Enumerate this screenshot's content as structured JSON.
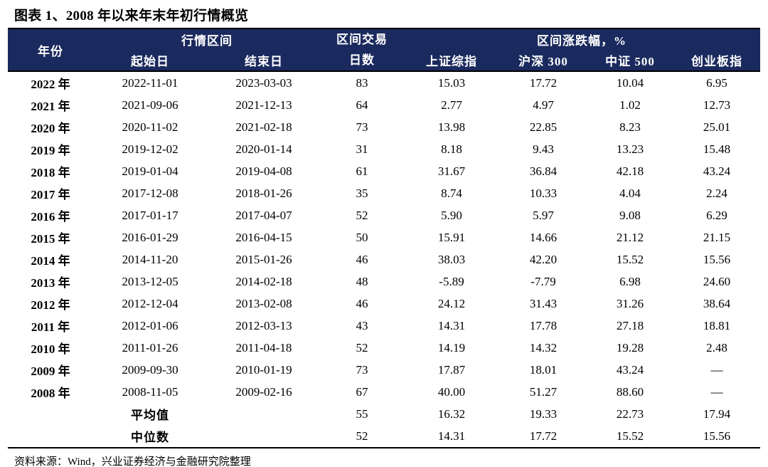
{
  "title": "图表 1、2008 年以来年末年初行情概览",
  "source": "资料来源：Wind，兴业证券经济与金融研究院整理",
  "colors": {
    "header_bg": "#1b2a5e",
    "header_text": "#ffffff",
    "body_text": "#000000",
    "rule": "#000000"
  },
  "table": {
    "header": {
      "year": "年份",
      "period_group": "行情区间",
      "start_date": "起始日",
      "end_date": "结束日",
      "trading_days_line1": "区间交易",
      "trading_days_line2": "日数",
      "change_group": "区间涨跌幅，%",
      "sse": "上证综指",
      "csi300": "沪深 300",
      "csi500": "中证 500",
      "chinext": "创业板指"
    },
    "rows": [
      {
        "year": "2022 年",
        "start": "2022-11-01",
        "end": "2023-03-03",
        "days": "83",
        "sse": "15.03",
        "csi300": "17.72",
        "csi500": "10.04",
        "chinext": "6.95"
      },
      {
        "year": "2021 年",
        "start": "2021-09-06",
        "end": "2021-12-13",
        "days": "64",
        "sse": "2.77",
        "csi300": "4.97",
        "csi500": "1.02",
        "chinext": "12.73"
      },
      {
        "year": "2020 年",
        "start": "2020-11-02",
        "end": "2021-02-18",
        "days": "73",
        "sse": "13.98",
        "csi300": "22.85",
        "csi500": "8.23",
        "chinext": "25.01"
      },
      {
        "year": "2019 年",
        "start": "2019-12-02",
        "end": "2020-01-14",
        "days": "31",
        "sse": "8.18",
        "csi300": "9.43",
        "csi500": "13.23",
        "chinext": "15.48"
      },
      {
        "year": "2018 年",
        "start": "2019-01-04",
        "end": "2019-04-08",
        "days": "61",
        "sse": "31.67",
        "csi300": "36.84",
        "csi500": "42.18",
        "chinext": "43.24"
      },
      {
        "year": "2017 年",
        "start": "2017-12-08",
        "end": "2018-01-26",
        "days": "35",
        "sse": "8.74",
        "csi300": "10.33",
        "csi500": "4.04",
        "chinext": "2.24"
      },
      {
        "year": "2016 年",
        "start": "2017-01-17",
        "end": "2017-04-07",
        "days": "52",
        "sse": "5.90",
        "csi300": "5.97",
        "csi500": "9.08",
        "chinext": "6.29"
      },
      {
        "year": "2015 年",
        "start": "2016-01-29",
        "end": "2016-04-15",
        "days": "50",
        "sse": "15.91",
        "csi300": "14.66",
        "csi500": "21.12",
        "chinext": "21.15"
      },
      {
        "year": "2014 年",
        "start": "2014-11-20",
        "end": "2015-01-26",
        "days": "46",
        "sse": "38.03",
        "csi300": "42.20",
        "csi500": "15.52",
        "chinext": "15.56"
      },
      {
        "year": "2013 年",
        "start": "2013-12-05",
        "end": "2014-02-18",
        "days": "48",
        "sse": "-5.89",
        "csi300": "-7.79",
        "csi500": "6.98",
        "chinext": "24.60"
      },
      {
        "year": "2012 年",
        "start": "2012-12-04",
        "end": "2013-02-08",
        "days": "46",
        "sse": "24.12",
        "csi300": "31.43",
        "csi500": "31.26",
        "chinext": "38.64"
      },
      {
        "year": "2011 年",
        "start": "2012-01-06",
        "end": "2012-03-13",
        "days": "43",
        "sse": "14.31",
        "csi300": "17.78",
        "csi500": "27.18",
        "chinext": "18.81"
      },
      {
        "year": "2010 年",
        "start": "2011-01-26",
        "end": "2011-04-18",
        "days": "52",
        "sse": "14.19",
        "csi300": "14.32",
        "csi500": "19.28",
        "chinext": "2.48"
      },
      {
        "year": "2009 年",
        "start": "2009-09-30",
        "end": "2010-01-19",
        "days": "73",
        "sse": "17.87",
        "csi300": "18.01",
        "csi500": "43.24",
        "chinext": "—"
      },
      {
        "year": "2008 年",
        "start": "2008-11-05",
        "end": "2009-02-16",
        "days": "67",
        "sse": "40.00",
        "csi300": "51.27",
        "csi500": "88.60",
        "chinext": "—"
      }
    ],
    "summary": [
      {
        "label": "平均值",
        "days": "55",
        "sse": "16.32",
        "csi300": "19.33",
        "csi500": "22.73",
        "chinext": "17.94"
      },
      {
        "label": "中位数",
        "days": "52",
        "sse": "14.31",
        "csi300": "17.72",
        "csi500": "15.52",
        "chinext": "15.56"
      }
    ]
  }
}
